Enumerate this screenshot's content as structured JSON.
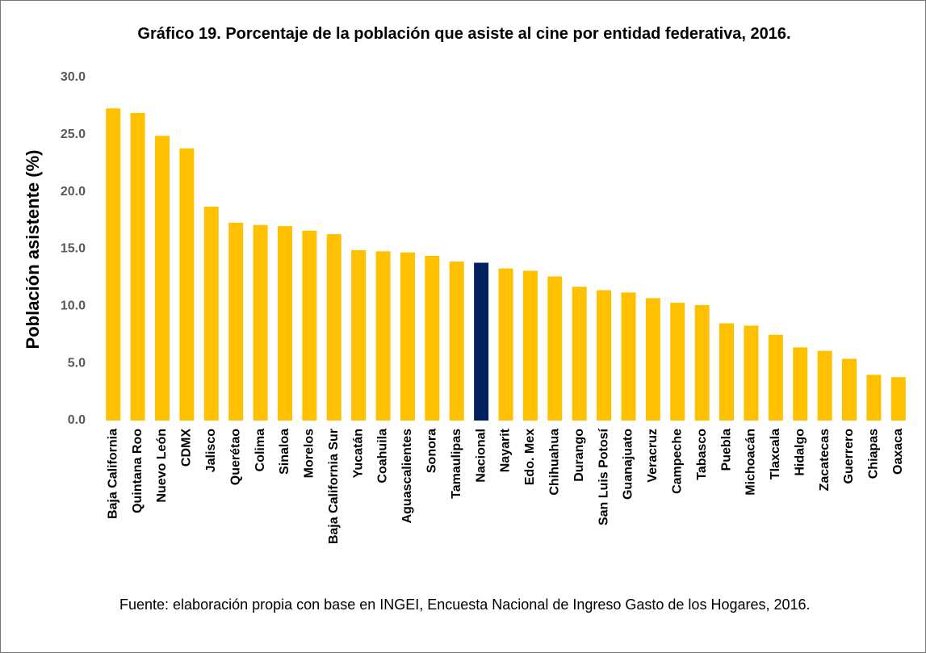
{
  "chart_data": {
    "type": "bar",
    "title": "Gráfico 19. Porcentaje de la población que asiste al cine por entidad federativa, 2016.",
    "y_label": "Población asistente (%)",
    "note": "Fuente: elaboración propia con base en INGEI, Encuesta Nacional de Ingreso Gasto de los Hogares, 2016.",
    "categories": [
      "Baja California",
      "Quintana Roo",
      "Nuevo León",
      "CDMX",
      "Jalisco",
      "Querétao",
      "Colima",
      "Sinaloa",
      "Morelos",
      "Baja California Sur",
      "Yucatán",
      "Coahuila",
      "Aguascalientes",
      "Sonora",
      "Tamaulipas",
      "Nacional",
      "Nayarit",
      "Edo. Mex",
      "Chihuahua",
      "Durango",
      "San Luis Potosí",
      "Guanajuato",
      "Veracruz",
      "Campeche",
      "Tabasco",
      "Puebla",
      "Michoacán",
      "Tlaxcala",
      "Hidalgo",
      "Zacatecas",
      "Guerrero",
      "Chiapas",
      "Oaxaca"
    ],
    "values": [
      27.3,
      26.9,
      24.9,
      23.8,
      18.7,
      17.3,
      17.1,
      17.0,
      16.6,
      16.3,
      14.9,
      14.8,
      14.7,
      14.4,
      13.9,
      13.8,
      13.3,
      13.1,
      12.6,
      11.7,
      11.4,
      11.2,
      10.7,
      10.3,
      10.1,
      8.5,
      8.3,
      7.5,
      6.4,
      6.1,
      5.4,
      4.0,
      3.8
    ],
    "colors": [
      "#ffc000",
      "#ffc000",
      "#ffc000",
      "#ffc000",
      "#ffc000",
      "#ffc000",
      "#ffc000",
      "#ffc000",
      "#ffc000",
      "#ffc000",
      "#ffc000",
      "#ffc000",
      "#ffc000",
      "#ffc000",
      "#ffc000",
      "#002060",
      "#ffc000",
      "#ffc000",
      "#ffc000",
      "#ffc000",
      "#ffc000",
      "#ffc000",
      "#ffc000",
      "#ffc000",
      "#ffc000",
      "#ffc000",
      "#ffc000",
      "#ffc000",
      "#ffc000",
      "#ffc000",
      "#ffc000",
      "#ffc000",
      "#ffc000"
    ],
    "ylim": [
      0,
      30
    ],
    "yticks": [
      {
        "value": 0,
        "label": "0.0"
      },
      {
        "value": 5,
        "label": "5.0"
      },
      {
        "value": 10,
        "label": "10.0"
      },
      {
        "value": 15,
        "label": "15.0"
      },
      {
        "value": 20,
        "label": "20.0"
      },
      {
        "value": 25,
        "label": "25.0"
      },
      {
        "value": 30,
        "label": "30.0"
      }
    ],
    "grid": false
  }
}
